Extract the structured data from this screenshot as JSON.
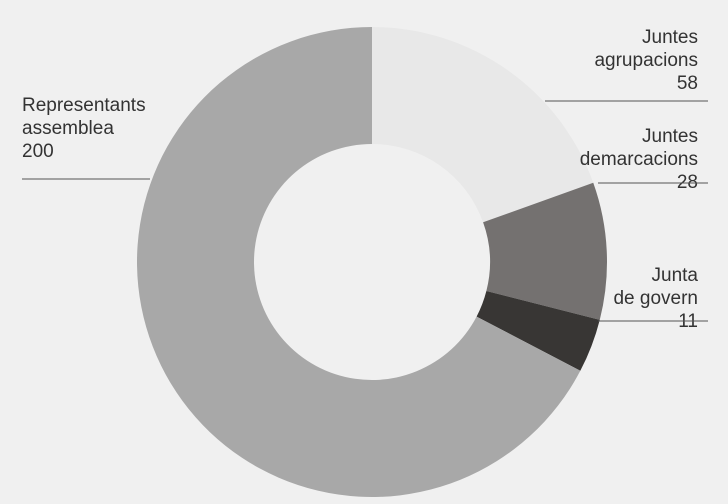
{
  "chart_data": {
    "type": "pie",
    "variant": "donut",
    "categories": [
      "Juntes agrupacions",
      "Juntes demarcacions",
      "Junta de govern",
      "Representants assemblea"
    ],
    "values": [
      58,
      28,
      11,
      200
    ],
    "colors": [
      "#e8e8e8",
      "#747170",
      "#383634",
      "#a8a8a8"
    ],
    "background": "#f0f0f0",
    "labels": [
      {
        "lines": [
          "Juntes",
          "agrupacions"
        ],
        "value": "58",
        "side": "right"
      },
      {
        "lines": [
          "Juntes",
          "demarcacions"
        ],
        "value": "28",
        "side": "right"
      },
      {
        "lines": [
          "Junta",
          "de govern"
        ],
        "value": "11",
        "side": "right"
      },
      {
        "lines": [
          "Representants",
          "assemblea"
        ],
        "value": "200",
        "side": "left"
      }
    ],
    "legend": "none"
  }
}
